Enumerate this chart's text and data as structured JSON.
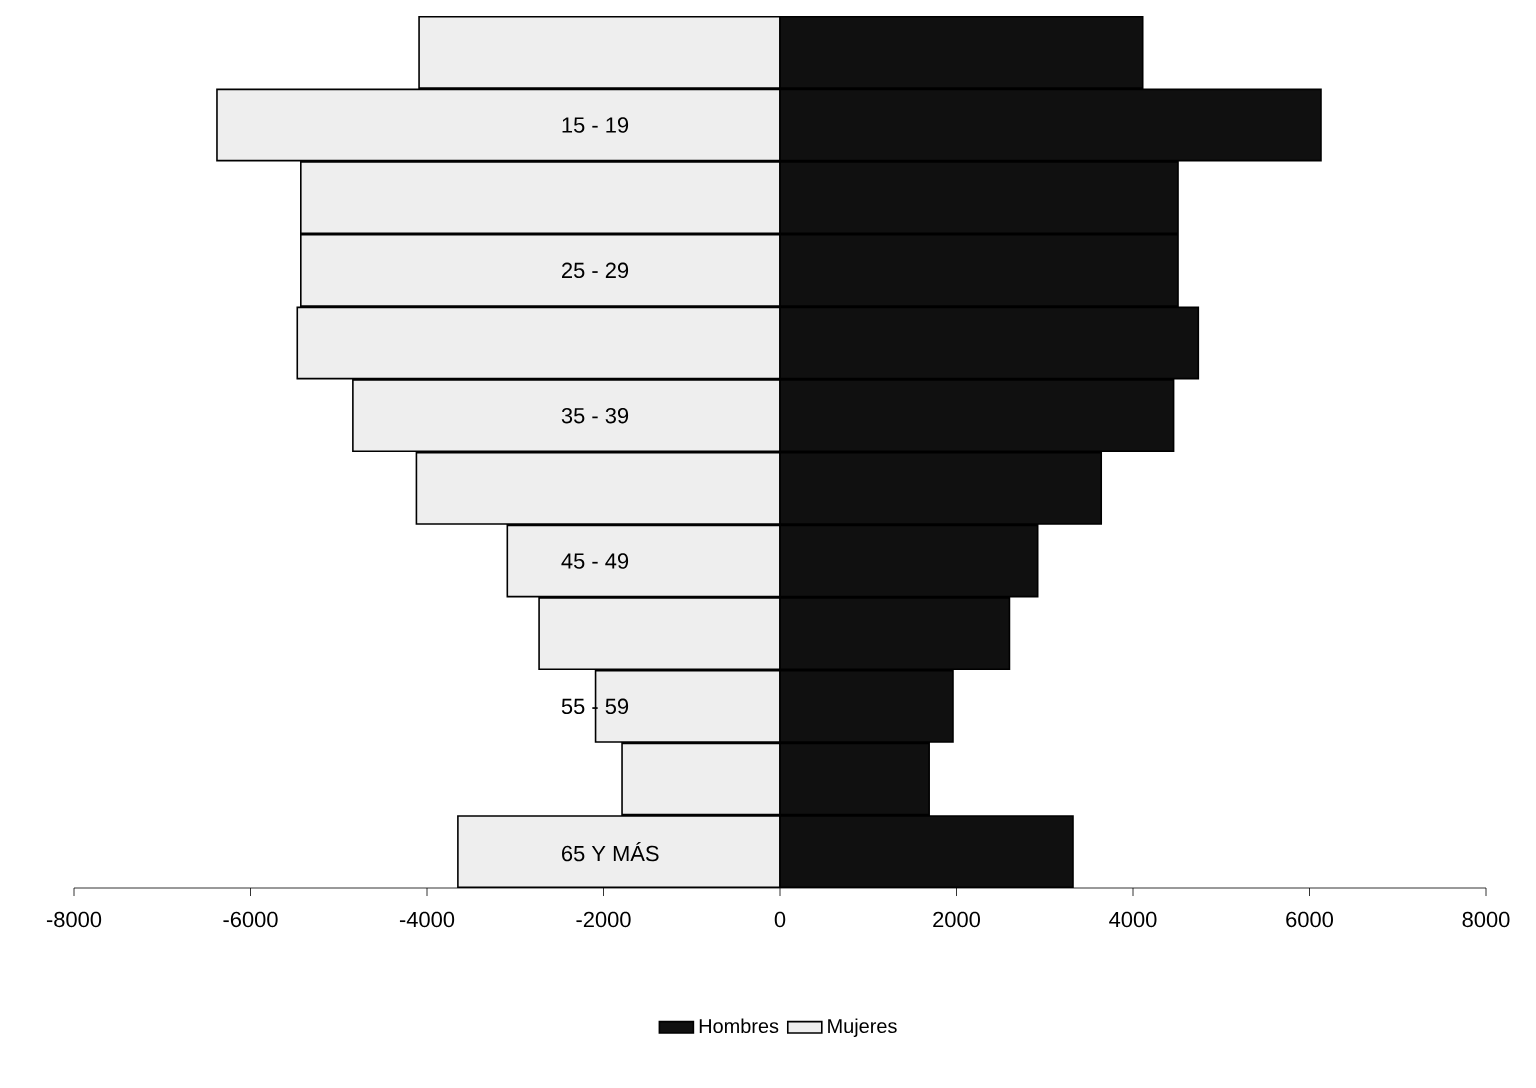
{
  "chart_data": {
    "type": "bar",
    "orientation": "horizontal",
    "stacked": true,
    "categories": [
      null,
      "15 - 19",
      null,
      "25 - 29",
      null,
      "35 - 39",
      null,
      "45 - 49",
      null,
      "55 - 59",
      null,
      "65 Y MÁS"
    ],
    "series": [
      {
        "name": "Hombres",
        "color": "#101010",
        "values": [
          4110,
          6130,
          4510,
          4510,
          4740,
          4460,
          3640,
          2920,
          2600,
          1960,
          1690,
          3320
        ]
      },
      {
        "name": "Mujeres",
        "color": "#eeeeee",
        "values": [
          -4090,
          -6380,
          -5430,
          -5430,
          -5470,
          -4840,
          -4120,
          -3090,
          -2730,
          -2090,
          -1790,
          -3650
        ]
      }
    ],
    "xlim": [
      -8000,
      8000
    ],
    "xticks": [
      -8000,
      -6000,
      -4000,
      -2000,
      0,
      2000,
      4000,
      6000,
      8000
    ],
    "legend": "bottom",
    "grid": false
  }
}
